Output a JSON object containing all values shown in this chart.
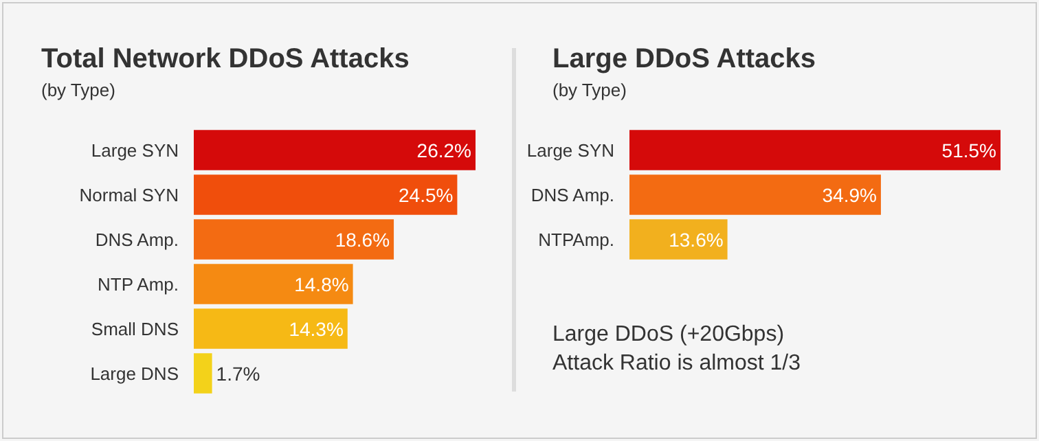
{
  "chart_data": [
    {
      "type": "bar",
      "orientation": "horizontal",
      "title": "Total Network DDoS Attacks",
      "subtitle": "(by Type)",
      "value_labels": [
        "26.2%",
        "24.5%",
        "18.6%",
        "14.8%",
        "14.3%",
        "1.7%"
      ],
      "categories": [
        "Large SYN",
        "Normal SYN",
        "DNS Amp.",
        "NTP Amp.",
        "Small DNS",
        "Large DNS"
      ],
      "values": [
        26.2,
        24.5,
        18.6,
        14.8,
        14.3,
        1.7
      ],
      "colors": [
        "#d50a0a",
        "#f04e0c",
        "#f36b12",
        "#f58a12",
        "#f6b915",
        "#f3d21a"
      ]
    },
    {
      "type": "bar",
      "orientation": "horizontal",
      "title": "Large DDoS Attacks",
      "subtitle": "(by Type)",
      "value_labels": [
        "51.5%",
        "34.9%",
        "13.6%"
      ],
      "categories": [
        "Large SYN",
        "DNS Amp.",
        "NTPAmp."
      ],
      "values": [
        51.5,
        34.9,
        13.6
      ],
      "colors": [
        "#d50a0a",
        "#f36b12",
        "#f2b01e"
      ],
      "annotations": [
        "Large DDoS (+20Gbps)\nAttack Ratio is almost 1/3"
      ]
    }
  ]
}
